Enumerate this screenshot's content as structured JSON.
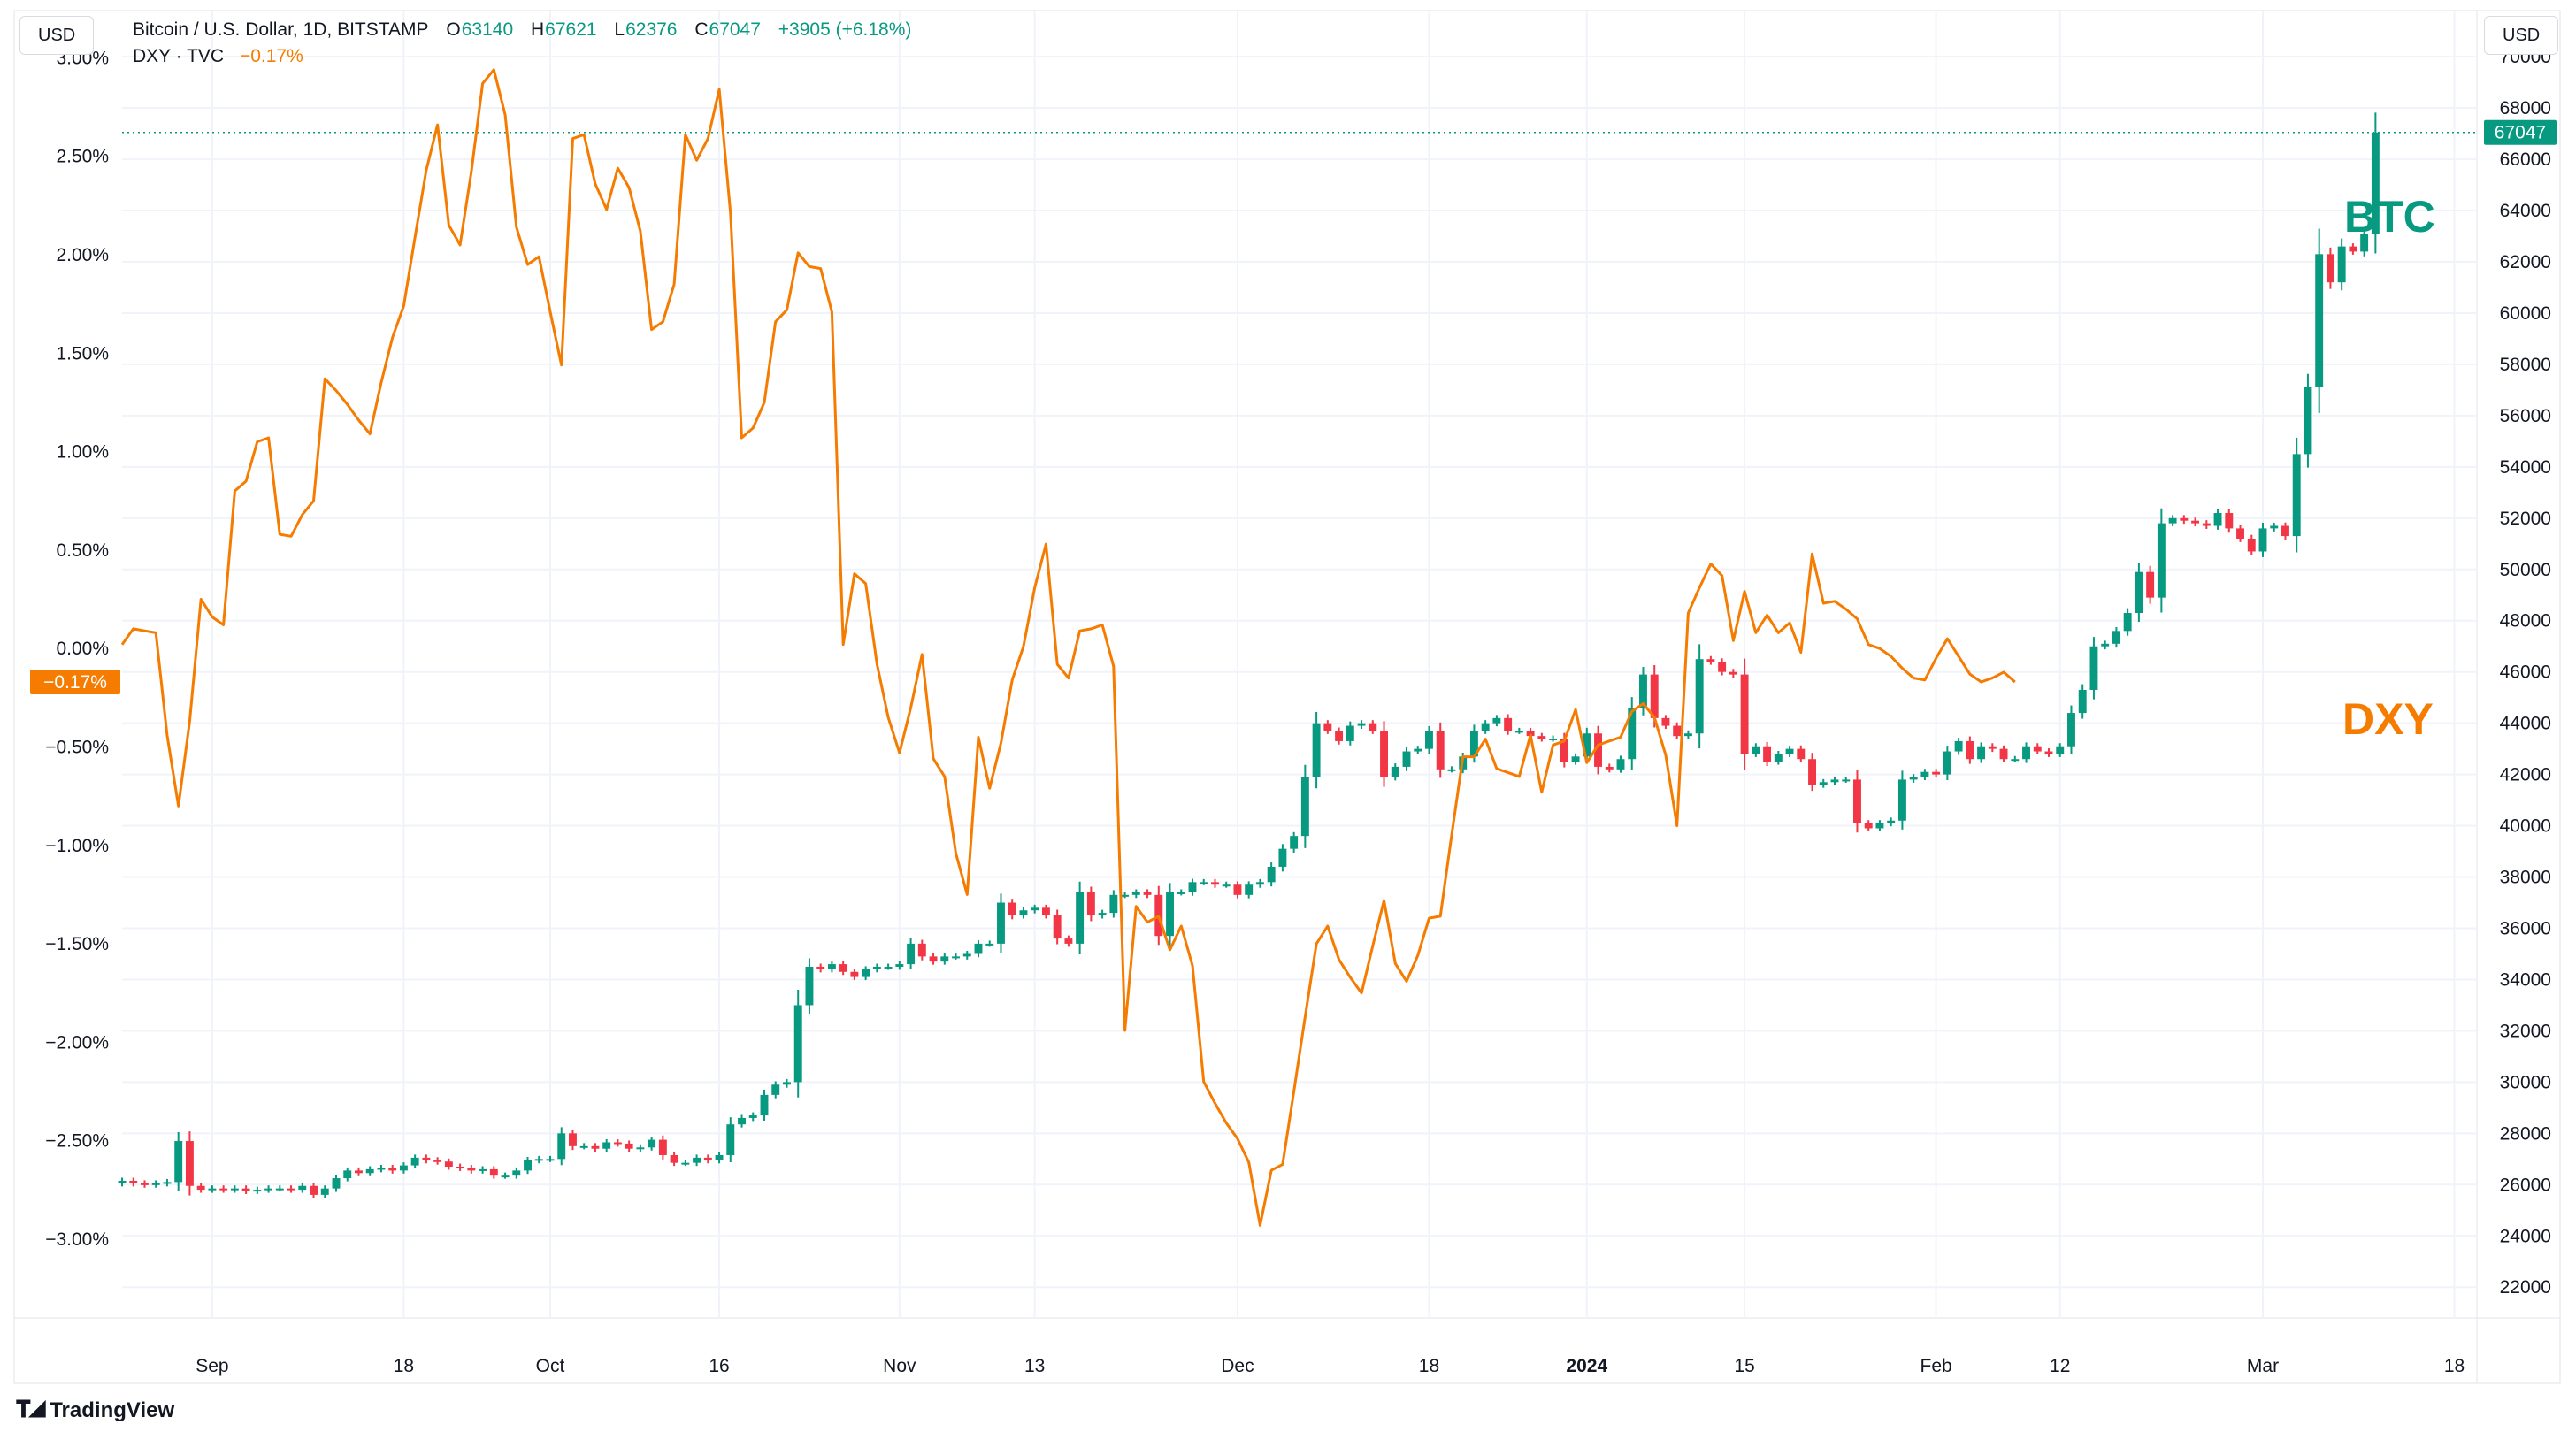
{
  "header": {
    "currency_left": "USD",
    "currency_right": "USD",
    "symbol": "Bitcoin / U.S. Dollar, 1D, BITSTAMP",
    "o_label": "O",
    "o_value": "63140",
    "h_label": "H",
    "h_value": "67621",
    "l_label": "L",
    "l_value": "62376",
    "c_label": "C",
    "c_value": "67047",
    "change": "+3905 (+6.18%)",
    "dxy_label": "DXY · TVC",
    "dxy_change": "−0.17%"
  },
  "branding": {
    "label": "TradingView"
  },
  "colors": {
    "up": "#089981",
    "down": "#f23645",
    "dxy": "#f57c00",
    "grid": "#f0f3fa",
    "text": "#131722"
  },
  "chart_data": {
    "type": "candlestick",
    "title": "",
    "x_ticks": [
      {
        "label": "Sep",
        "date": "2023-09-01"
      },
      {
        "label": "18",
        "date": "2023-09-18"
      },
      {
        "label": "Oct",
        "date": "2023-10-01"
      },
      {
        "label": "16",
        "date": "2023-10-16"
      },
      {
        "label": "Nov",
        "date": "2023-11-01"
      },
      {
        "label": "13",
        "date": "2023-11-13"
      },
      {
        "label": "Dec",
        "date": "2023-12-01"
      },
      {
        "label": "18",
        "date": "2023-12-18"
      },
      {
        "label": "2024",
        "date": "2024-01-01",
        "bold": true
      },
      {
        "label": "15",
        "date": "2024-01-15"
      },
      {
        "label": "Feb",
        "date": "2024-02-01"
      },
      {
        "label": "12",
        "date": "2024-02-12"
      },
      {
        "label": "Mar",
        "date": "2024-03-01"
      },
      {
        "label": "18",
        "date": "2024-03-18"
      }
    ],
    "x_range": [
      "2023-08-24",
      "2024-03-20"
    ],
    "right_axis": {
      "ylim": [
        20800,
        71800
      ],
      "ticks": [
        "22000",
        "24000",
        "26000",
        "28000",
        "30000",
        "32000",
        "34000",
        "36000",
        "38000",
        "40000",
        "42000",
        "44000",
        "46000",
        "48000",
        "50000",
        "52000",
        "54000",
        "56000",
        "58000",
        "60000",
        "62000",
        "64000",
        "66000",
        "68000",
        "70000"
      ],
      "last_price": 67047,
      "last_price_label": "67047"
    },
    "left_axis": {
      "ylim": [
        -3.4,
        3.24
      ],
      "ticks": [
        {
          "value": 3.0,
          "label": "3.00%"
        },
        {
          "value": 2.5,
          "label": "2.50%"
        },
        {
          "value": 2.0,
          "label": "2.00%"
        },
        {
          "value": 1.5,
          "label": "1.50%"
        },
        {
          "value": 1.0,
          "label": "1.00%"
        },
        {
          "value": 0.5,
          "label": "0.50%"
        },
        {
          "value": 0.0,
          "label": "0.00%"
        },
        {
          "value": -0.5,
          "label": "−0.50%"
        },
        {
          "value": -1.0,
          "label": "−1.00%"
        },
        {
          "value": -1.5,
          "label": "−1.50%"
        },
        {
          "value": -2.0,
          "label": "−2.00%"
        },
        {
          "value": -2.5,
          "label": "−2.50%"
        },
        {
          "value": -3.0,
          "label": "−3.00%"
        }
      ],
      "last_value": -0.17,
      "last_value_label": "−0.17%"
    },
    "series": [
      {
        "name": "BTC",
        "kind": "candlestick",
        "axis": "right",
        "start_date": "2023-08-24",
        "closes": [
          26150,
          26050,
          26000,
          26050,
          26100,
          27700,
          25950,
          25800,
          25850,
          25800,
          25850,
          25750,
          25800,
          25850,
          25850,
          25800,
          25950,
          25600,
          25850,
          26250,
          26550,
          26450,
          26600,
          26650,
          26550,
          26750,
          27050,
          26950,
          26900,
          26700,
          26650,
          26550,
          26600,
          26350,
          26350,
          26550,
          26950,
          27000,
          27000,
          28000,
          27500,
          27500,
          27400,
          27650,
          27600,
          27400,
          27450,
          27750,
          27150,
          26850,
          26850,
          27050,
          26950,
          27150,
          28350,
          28600,
          28700,
          29500,
          29900,
          30000,
          33000,
          34500,
          34400,
          34600,
          34300,
          34100,
          34400,
          34500,
          34500,
          34600,
          35400,
          34900,
          34700,
          34900,
          34900,
          35000,
          35400,
          35400,
          37000,
          36500,
          36700,
          36800,
          36500,
          35600,
          35400,
          37400,
          36500,
          36600,
          37300,
          37300,
          37400,
          37300,
          35700,
          37400,
          37400,
          37800,
          37800,
          37700,
          37700,
          37300,
          37700,
          37800,
          38400,
          39100,
          39600,
          41900,
          44000,
          43700,
          43300,
          43900,
          44000,
          43700,
          41900,
          42300,
          42900,
          43000,
          43700,
          42200,
          42200,
          42700,
          43700,
          44000,
          44200,
          43700,
          43700,
          43500,
          43400,
          43400,
          42500,
          42700,
          43600,
          42300,
          42200,
          42600,
          44600,
          45900,
          44200,
          43900,
          43500,
          43600,
          46500,
          46400,
          46000,
          45900,
          42800,
          43100,
          42500,
          42800,
          43000,
          42600,
          41600,
          41700,
          41800,
          41800,
          40100,
          39900,
          40100,
          40200,
          41800,
          41900,
          42100,
          42000,
          42900,
          43300,
          42600,
          43100,
          43000,
          42600,
          42600,
          43100,
          42900,
          42800,
          43100,
          44400,
          45300,
          47000,
          47100,
          47600,
          48300,
          49900,
          48900,
          51800,
          52000,
          51900,
          51800,
          51700,
          52200,
          51600,
          51200,
          50700,
          51600,
          51700,
          51300,
          54500,
          57100,
          62300,
          61200,
          62600,
          62400,
          63100,
          67047
        ],
        "last_label": "BTC"
      },
      {
        "name": "DXY",
        "kind": "line",
        "axis": "left",
        "start_date": "2023-08-24",
        "values": [
          0.02,
          0.1,
          0.09,
          0.08,
          -0.44,
          -0.8,
          -0.37,
          0.25,
          0.16,
          0.12,
          0.8,
          0.85,
          1.05,
          1.07,
          0.58,
          0.57,
          0.68,
          0.75,
          1.37,
          1.31,
          1.24,
          1.16,
          1.09,
          1.35,
          1.58,
          1.74,
          2.09,
          2.43,
          2.66,
          2.15,
          2.05,
          2.42,
          2.87,
          2.94,
          2.71,
          2.14,
          1.95,
          1.99,
          1.71,
          1.44,
          2.59,
          2.61,
          2.36,
          2.23,
          2.44,
          2.34,
          2.12,
          1.62,
          1.66,
          1.85,
          2.61,
          2.48,
          2.59,
          2.84,
          2.21,
          1.07,
          1.12,
          1.25,
          1.66,
          1.72,
          2.01,
          1.94,
          1.93,
          1.71,
          0.02,
          0.38,
          0.33,
          -0.08,
          -0.35,
          -0.53,
          -0.3,
          -0.03,
          -0.56,
          -0.65,
          -1.04,
          -1.25,
          -0.45,
          -0.71,
          -0.48,
          -0.16,
          0.01,
          0.31,
          0.53,
          -0.08,
          -0.15,
          0.09,
          0.1,
          0.12,
          -0.09,
          -1.94,
          -1.31,
          -1.39,
          -1.36,
          -1.53,
          -1.41,
          -1.61,
          -2.2,
          -2.31,
          -2.41,
          -2.49,
          -2.61,
          -2.93,
          -2.65,
          -2.62,
          -2.25,
          -1.87,
          -1.5,
          -1.41,
          -1.58,
          -1.67,
          -1.75,
          -1.51,
          -1.28,
          -1.6,
          -1.69,
          -1.56,
          -1.37,
          -1.36,
          -0.95,
          -0.55,
          -0.55,
          -0.46,
          -0.61,
          -0.63,
          -0.65,
          -0.44,
          -0.73,
          -0.49,
          -0.47,
          -0.31,
          -0.58,
          -0.49,
          -0.47,
          -0.45,
          -0.32,
          -0.28,
          -0.35,
          -0.54,
          -0.9,
          0.18,
          0.31,
          0.43,
          0.37,
          0.04,
          0.29,
          0.08,
          0.17,
          0.08,
          0.13,
          -0.02,
          0.48,
          0.23,
          0.24,
          0.2,
          0.15,
          0.02,
          0.0,
          -0.04,
          -0.1,
          -0.15,
          -0.16,
          -0.05,
          0.05,
          -0.04,
          -0.13,
          -0.17,
          -0.15,
          -0.12,
          -0.17
        ],
        "last_label": "DXY"
      }
    ],
    "grid": true
  }
}
